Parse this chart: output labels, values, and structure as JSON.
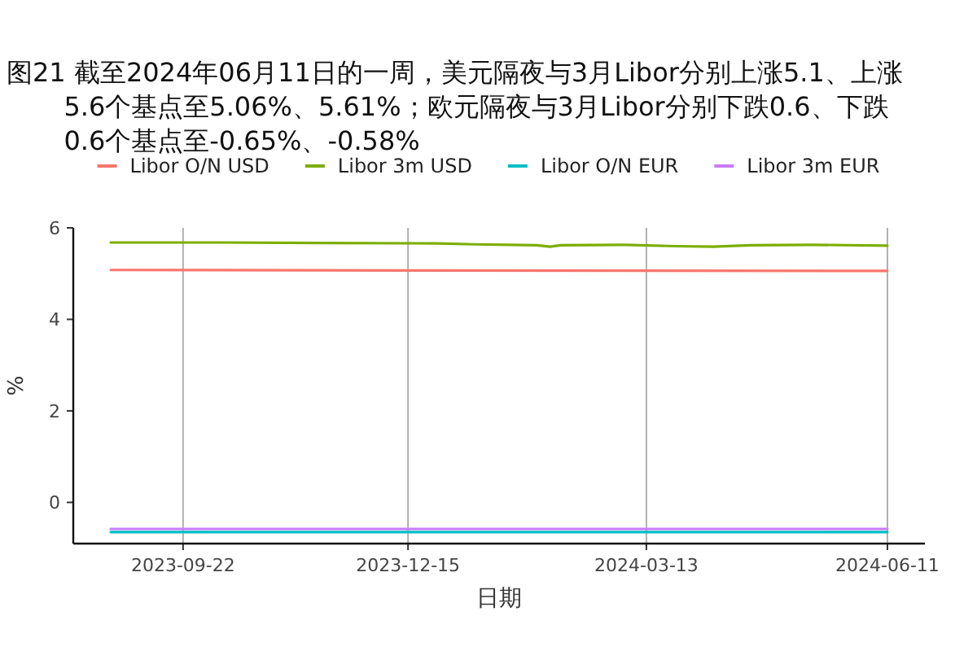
{
  "chart_data": {
    "type": "line",
    "title": "图21  截至2024年06月11日的一周，美元隔夜与3月Libor分别上涨5.1、上涨5.6个基点至5.06%、5.61%；欧元隔夜与3月Libor分别下跌0.6、下跌0.6个基点至-0.65%、-0.58%",
    "xlabel": "日期",
    "ylabel": "%",
    "series": [
      {
        "name": "Libor O/N USD",
        "color": "#f8766d",
        "x": [
          "2023-08-26",
          "2023-12-15",
          "2024-06-11"
        ],
        "values": [
          5.08,
          5.07,
          5.06
        ]
      },
      {
        "name": "Libor 3m USD",
        "color": "#7cae00",
        "x": [
          "2023-08-26",
          "2023-10-05",
          "2023-11-14",
          "2023-12-26",
          "2024-01-09",
          "2024-02-01",
          "2024-02-06",
          "2024-02-10",
          "2024-03-05",
          "2024-03-24",
          "2024-04-07",
          "2024-04-21",
          "2024-05-14",
          "2024-06-11"
        ],
        "values": [
          5.68,
          5.68,
          5.67,
          5.66,
          5.64,
          5.62,
          5.59,
          5.62,
          5.63,
          5.6,
          5.59,
          5.62,
          5.63,
          5.61
        ]
      },
      {
        "name": "Libor O/N EUR",
        "color": "#00bfc4",
        "x": [
          "2023-08-26",
          "2024-06-11"
        ],
        "values": [
          -0.65,
          -0.65
        ]
      },
      {
        "name": "Libor 3m EUR",
        "color": "#c77cff",
        "x": [
          "2023-08-26",
          "2024-06-11"
        ],
        "values": [
          -0.58,
          -0.58
        ]
      }
    ],
    "xlim": [
      "2023-08-12",
      "2024-06-25"
    ],
    "xticks": [
      {
        "value": "2023-09-22",
        "label": "2023-09-22"
      },
      {
        "value": "2023-12-15",
        "label": "2023-12-15"
      },
      {
        "value": "2024-03-13",
        "label": "2024-03-13"
      },
      {
        "value": "2024-06-11",
        "label": "2024-06-11"
      }
    ],
    "ylim": [
      -0.9,
      6
    ],
    "yticks": [
      0,
      2,
      4,
      6
    ],
    "grid": "x",
    "legend": "top",
    "marker": "none",
    "line_style": "solid"
  }
}
